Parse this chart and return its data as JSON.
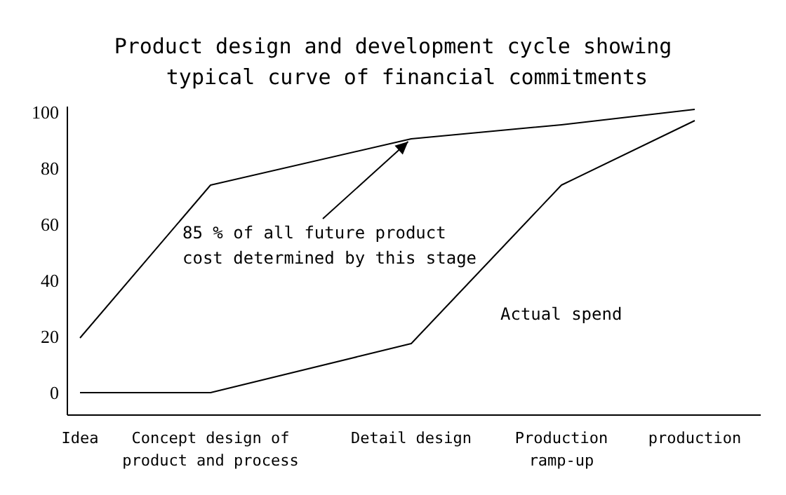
{
  "chart_data": {
    "type": "line",
    "title": "Product design and development cycle showing typical curve of financial commitments",
    "categories": [
      "Idea",
      "Concept design of product and process",
      "Detail design",
      "Production ramp-up",
      "production"
    ],
    "series": [
      {
        "color": "#000000",
        "values": [
          19.5,
          74,
          90.5,
          95.5,
          101
        ]
      },
      {
        "name": "Actual spend",
        "color": "#000000",
        "values": [
          0,
          0,
          17.5,
          74,
          97
        ]
      }
    ],
    "ylim": [
      -8,
      102
    ],
    "yticks": [
      0,
      20,
      40,
      60,
      80,
      100
    ],
    "grid": false,
    "marker": "none",
    "line_style": "solid",
    "annotations": [
      {
        "text": "85 % of all future product cost determined by this stage",
        "x": "Detail design",
        "y": 90.5
      }
    ]
  }
}
